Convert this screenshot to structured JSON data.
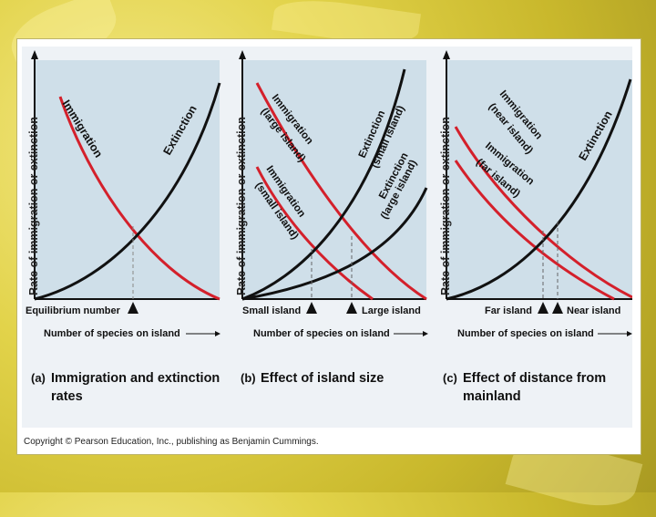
{
  "colors": {
    "immigration": "#d4202b",
    "extinction": "#111111",
    "plot_bg": "#cfdfe9"
  },
  "panels": [
    {
      "y_axis_label": "Rate of immigration or extinction",
      "x_axis_label": "Number of species on island",
      "curve_labels": [
        "Immigration",
        "Extinction"
      ],
      "markers": [
        "Equilibrium number"
      ],
      "caption_letter": "(a)",
      "caption": [
        "Immigration and extinction",
        "rates"
      ]
    },
    {
      "y_axis_label": "Rate of immigration or extinction",
      "x_axis_label": "Number of species on island",
      "curve_labels": [
        "Immigration",
        "(large island)",
        "Immigration",
        "(small island)",
        "Extinction",
        "(small island)",
        "Extinction",
        "(large island)"
      ],
      "markers": [
        "Small island",
        "Large island"
      ],
      "caption_letter": "(b)",
      "caption": [
        "Effect of island size"
      ]
    },
    {
      "y_axis_label": "Rate of immigration or extinction",
      "x_axis_label": "Number of species on island",
      "curve_labels": [
        "Immigration",
        "(near island)",
        "Immigration",
        "(far island)",
        "Extinction"
      ],
      "markers": [
        "Far island",
        "Near island"
      ],
      "caption_letter": "(c)",
      "caption": [
        "Effect of distance from",
        "mainland"
      ]
    }
  ],
  "copyright": "Copyright © Pearson Education, Inc., publishing as Benjamin Cummings."
}
